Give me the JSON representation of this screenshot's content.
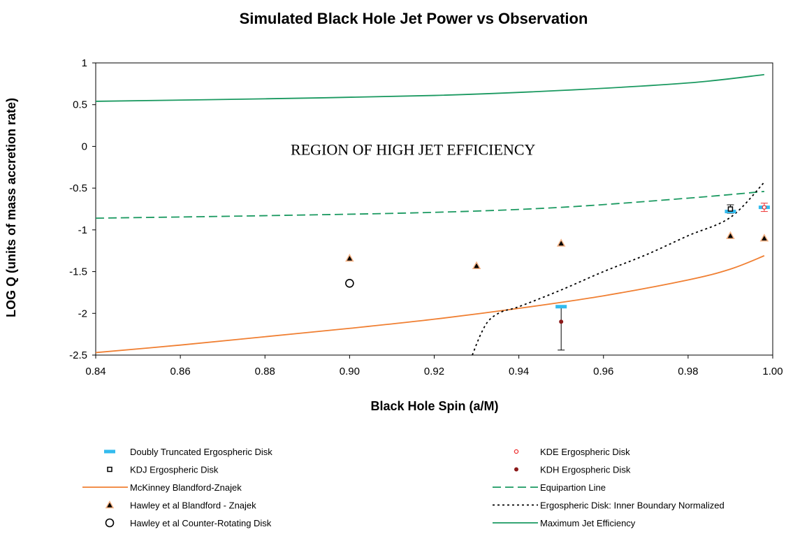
{
  "chart_data": {
    "type": "scatter",
    "title": "Simulated Black Hole Jet Power vs Observation",
    "xlabel": "Black Hole Spin (a/M)",
    "ylabel": "LOG Q (units of mass accretion rate)",
    "xlim": [
      0.84,
      1.0
    ],
    "ylim": [
      -2.5,
      1
    ],
    "xticks": [
      "0.84",
      "0.86",
      "0.88",
      "0.90",
      "0.92",
      "0.94",
      "0.96",
      "0.98",
      "1.00"
    ],
    "yticks": [
      "1",
      "0.5",
      "0",
      "-0.5",
      "-1",
      "-1.5",
      "-2",
      "-2.5"
    ],
    "grid": false,
    "legend_position": "bottom",
    "annotation": "REGION OF HIGH JET EFFICIENCY",
    "series": [
      {
        "name": "Doubly Truncated Ergospheric Disk",
        "marker": "dash",
        "color": "#33bbee",
        "points": [
          [
            0.95,
            -1.92
          ],
          [
            0.99,
            -0.78
          ],
          [
            0.998,
            -0.73
          ]
        ]
      },
      {
        "name": "KDE Ergospheric Disk",
        "marker": "open-circle-small",
        "color": "#ee3333",
        "points": [
          [
            0.998,
            -0.73
          ]
        ],
        "errors": [
          [
            0.05,
            0.05
          ]
        ]
      },
      {
        "name": "KDJ Ergospheric Disk",
        "marker": "open-square",
        "color": "#000000",
        "points": [
          [
            0.99,
            -0.75
          ]
        ],
        "errors": [
          [
            0.05,
            0.05
          ]
        ]
      },
      {
        "name": "KDH Ergospheric Disk",
        "marker": "filled-circle-small",
        "color": "#8b1a1a",
        "points": [
          [
            0.95,
            -2.1
          ]
        ],
        "errors": [
          [
            0.34,
            0.18
          ]
        ]
      },
      {
        "name": "McKinney Blandford-Znajek",
        "marker": "line",
        "line_style": "solid",
        "color": "#f07f32",
        "points": [
          [
            0.84,
            -2.47
          ],
          [
            0.86,
            -2.38
          ],
          [
            0.88,
            -2.28
          ],
          [
            0.9,
            -2.18
          ],
          [
            0.92,
            -2.07
          ],
          [
            0.94,
            -1.94
          ],
          [
            0.96,
            -1.79
          ],
          [
            0.98,
            -1.6
          ],
          [
            0.99,
            -1.47
          ],
          [
            0.998,
            -1.31
          ]
        ]
      },
      {
        "name": "Equipartion Line",
        "marker": "line",
        "line_style": "dashed",
        "color": "#1a9960",
        "points": [
          [
            0.84,
            -0.86
          ],
          [
            0.88,
            -0.83
          ],
          [
            0.92,
            -0.79
          ],
          [
            0.95,
            -0.73
          ],
          [
            0.98,
            -0.62
          ],
          [
            0.998,
            -0.54
          ]
        ]
      },
      {
        "name": "Hawley et al Blandford - Znajek",
        "marker": "triangle",
        "color": "#f4b183",
        "points": [
          [
            0.9,
            -1.34
          ],
          [
            0.93,
            -1.43
          ],
          [
            0.95,
            -1.16
          ],
          [
            0.99,
            -1.07
          ],
          [
            0.998,
            -1.1
          ]
        ]
      },
      {
        "name": "Ergospheric Disk: Inner Boundary Normalized",
        "marker": "line",
        "line_style": "dotted",
        "color": "#000000",
        "points": [
          [
            0.929,
            -2.5
          ],
          [
            0.931,
            -2.25
          ],
          [
            0.933,
            -2.08
          ],
          [
            0.936,
            -1.98
          ],
          [
            0.94,
            -1.92
          ],
          [
            0.95,
            -1.72
          ],
          [
            0.96,
            -1.5
          ],
          [
            0.97,
            -1.3
          ],
          [
            0.98,
            -1.07
          ],
          [
            0.99,
            -0.85
          ],
          [
            0.998,
            -0.43
          ]
        ]
      },
      {
        "name": "Hawley et al Counter-Rotating Disk",
        "marker": "open-circle",
        "color": "#000000",
        "points": [
          [
            0.9,
            -1.64
          ]
        ]
      },
      {
        "name": "Maximum Jet Efficiency",
        "marker": "line",
        "line_style": "solid",
        "color": "#1a9960",
        "points": [
          [
            0.84,
            0.54
          ],
          [
            0.88,
            0.57
          ],
          [
            0.92,
            0.61
          ],
          [
            0.95,
            0.67
          ],
          [
            0.98,
            0.76
          ],
          [
            0.998,
            0.86
          ]
        ]
      }
    ]
  },
  "legend": [
    {
      "label": "Doubly Truncated Ergospheric Disk",
      "series": 0
    },
    {
      "label": "KDE Ergospheric Disk",
      "series": 1
    },
    {
      "label": "KDJ Ergospheric Disk",
      "series": 2
    },
    {
      "label": "KDH Ergospheric Disk",
      "series": 3
    },
    {
      "label": "McKinney Blandford-Znajek",
      "series": 4
    },
    {
      "label": "Equipartion Line",
      "series": 5
    },
    {
      "label": "Hawley et al Blandford - Znajek",
      "series": 6
    },
    {
      "label": "Ergospheric Disk: Inner Boundary Normalized",
      "series": 7
    },
    {
      "label": "Hawley et al Counter-Rotating Disk",
      "series": 8
    },
    {
      "label": "Maximum Jet Efficiency",
      "series": 9
    }
  ]
}
